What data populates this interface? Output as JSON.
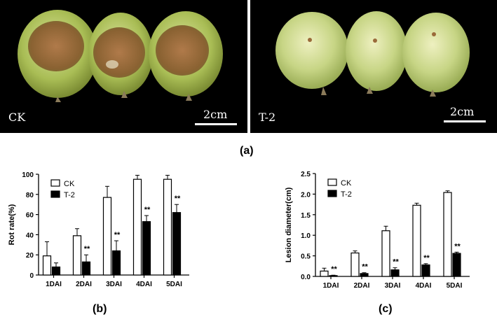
{
  "panels": {
    "a": {
      "label": "(a)",
      "left_photo": {
        "label": "CK",
        "scale": "2cm"
      },
      "right_photo": {
        "label": "T-2",
        "scale": "2cm"
      }
    },
    "b": {
      "label": "(b)"
    },
    "c": {
      "label": "(c)"
    }
  },
  "chart_data": [
    {
      "type": "bar",
      "ylabel": "Rot rate(%)",
      "ylim": [
        0,
        100
      ],
      "yticks": [
        0,
        20,
        40,
        60,
        80,
        100
      ],
      "categories": [
        "1DAI",
        "2DAI",
        "3DAI",
        "4DAI",
        "5DAI"
      ],
      "legend_placement": "top-left",
      "series": [
        {
          "name": "CK",
          "fill": "#ffffff",
          "values": [
            19,
            39,
            77,
            95,
            95
          ],
          "errors": [
            14,
            7,
            11,
            4,
            4
          ]
        },
        {
          "name": "T-2",
          "fill": "#000000",
          "values": [
            8,
            13,
            24,
            53,
            62
          ],
          "errors": [
            4,
            7,
            10,
            6,
            8
          ]
        }
      ],
      "significance": [
        "",
        "**",
        "**",
        "**",
        "**"
      ]
    },
    {
      "type": "bar",
      "ylabel": "Lesion diameter(cm)",
      "ylim": [
        0,
        2.5
      ],
      "yticks": [
        "0.0",
        "0.5",
        "1.0",
        "1.5",
        "2.0",
        "2.5"
      ],
      "categories": [
        "1DAI",
        "2DAI",
        "3DAI",
        "4DAI",
        "5DAI"
      ],
      "legend_placement": "top-left",
      "series": [
        {
          "name": "CK",
          "fill": "#ffffff",
          "values": [
            0.13,
            0.57,
            1.11,
            1.73,
            2.04
          ],
          "errors": [
            0.07,
            0.05,
            0.11,
            0.05,
            0.04
          ]
        },
        {
          "name": "T-2",
          "fill": "#000000",
          "values": [
            0.02,
            0.07,
            0.16,
            0.28,
            0.56
          ],
          "errors": [
            0.01,
            0.02,
            0.05,
            0.03,
            0.03
          ]
        }
      ],
      "significance": [
        "**",
        "**",
        "**",
        "**",
        "**"
      ]
    }
  ]
}
